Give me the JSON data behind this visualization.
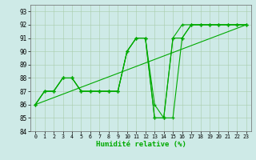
{
  "xlabel": "Humidité relative (%)",
  "bg_color": "#ceeae7",
  "grid_color": "#aaccaa",
  "line_color": "#00aa00",
  "xlim": [
    -0.5,
    23.5
  ],
  "ylim": [
    84,
    93.5
  ],
  "yticks": [
    84,
    85,
    86,
    87,
    88,
    89,
    90,
    91,
    92,
    93
  ],
  "xticks": [
    0,
    1,
    2,
    3,
    4,
    5,
    6,
    7,
    8,
    9,
    10,
    11,
    12,
    13,
    14,
    15,
    16,
    17,
    18,
    19,
    20,
    21,
    22,
    23
  ],
  "lines": [
    {
      "x": [
        0,
        23
      ],
      "y": [
        86,
        92
      ],
      "marker": false
    },
    {
      "x": [
        0,
        1,
        2,
        3,
        4,
        5,
        6,
        7,
        8,
        9,
        10,
        11,
        12,
        13,
        14,
        15,
        16,
        17,
        18,
        19,
        20,
        21,
        22,
        23
      ],
      "y": [
        86,
        87,
        87,
        88,
        88,
        87,
        87,
        87,
        87,
        87,
        90,
        91,
        91,
        86,
        85,
        85,
        91,
        92,
        92,
        92,
        92,
        92,
        92,
        92
      ],
      "marker": true
    },
    {
      "x": [
        0,
        1,
        2,
        3,
        4,
        5,
        6,
        7,
        8,
        9,
        10,
        11,
        12,
        13,
        14,
        15,
        16,
        17,
        18,
        19,
        20,
        21,
        22,
        23
      ],
      "y": [
        86,
        87,
        87,
        88,
        88,
        87,
        87,
        87,
        87,
        87,
        90,
        91,
        91,
        85,
        85,
        91,
        91,
        92,
        92,
        92,
        92,
        92,
        92,
        92
      ],
      "marker": true
    },
    {
      "x": [
        0,
        1,
        2,
        3,
        4,
        5,
        6,
        7,
        8,
        9,
        10,
        11,
        12,
        13,
        14,
        15,
        16,
        17,
        18,
        19,
        20,
        21,
        22,
        23
      ],
      "y": [
        86,
        87,
        87,
        88,
        88,
        87,
        87,
        87,
        87,
        87,
        90,
        91,
        91,
        85,
        85,
        91,
        92,
        92,
        92,
        92,
        92,
        92,
        92,
        92
      ],
      "marker": true
    }
  ]
}
